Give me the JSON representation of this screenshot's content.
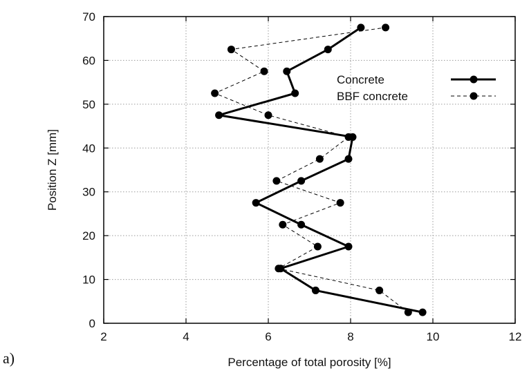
{
  "panel_label": "a)",
  "chart_data": {
    "type": "line",
    "xlabel": "Percentage of total porosity [%]",
    "ylabel": "Position Z [mm]",
    "xlim": [
      2,
      12
    ],
    "ylim": [
      0,
      70
    ],
    "xticks": [
      2,
      4,
      6,
      8,
      10,
      12
    ],
    "yticks": [
      0,
      10,
      20,
      30,
      40,
      50,
      60,
      70
    ],
    "grid": true,
    "legend_position": "top-right",
    "series": [
      {
        "name": "Concrete",
        "line_style": "solid",
        "points": [
          {
            "x": 9.75,
            "y": 2.5
          },
          {
            "x": 7.15,
            "y": 7.5
          },
          {
            "x": 6.3,
            "y": 12.5
          },
          {
            "x": 7.95,
            "y": 17.5
          },
          {
            "x": 6.8,
            "y": 22.5
          },
          {
            "x": 5.7,
            "y": 27.5
          },
          {
            "x": 6.8,
            "y": 32.5
          },
          {
            "x": 7.95,
            "y": 37.5
          },
          {
            "x": 8.05,
            "y": 42.5
          },
          {
            "x": 4.8,
            "y": 47.5
          },
          {
            "x": 6.65,
            "y": 52.5
          },
          {
            "x": 6.45,
            "y": 57.5
          },
          {
            "x": 7.45,
            "y": 62.5
          },
          {
            "x": 8.25,
            "y": 67.5
          }
        ]
      },
      {
        "name": "BBF concrete",
        "line_style": "dashed",
        "points": [
          {
            "x": 9.4,
            "y": 2.5
          },
          {
            "x": 8.7,
            "y": 7.5
          },
          {
            "x": 6.25,
            "y": 12.5
          },
          {
            "x": 7.2,
            "y": 17.5
          },
          {
            "x": 6.35,
            "y": 22.5
          },
          {
            "x": 7.75,
            "y": 27.5
          },
          {
            "x": 6.2,
            "y": 32.5
          },
          {
            "x": 7.25,
            "y": 37.5
          },
          {
            "x": 7.95,
            "y": 42.5
          },
          {
            "x": 6.0,
            "y": 47.5
          },
          {
            "x": 4.7,
            "y": 52.5
          },
          {
            "x": 5.9,
            "y": 57.5
          },
          {
            "x": 5.1,
            "y": 62.5
          },
          {
            "x": 8.85,
            "y": 67.5
          }
        ]
      }
    ]
  }
}
